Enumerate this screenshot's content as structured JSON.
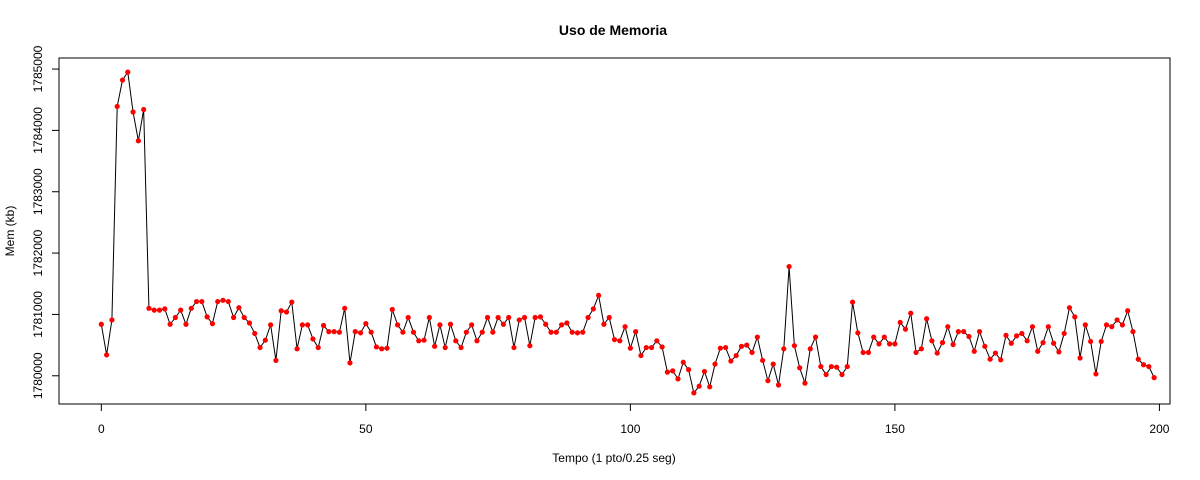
{
  "chart_data": {
    "type": "line",
    "title": "Uso de Memoria",
    "xlabel": "Tempo (1 pto/0.25 seg)",
    "ylabel": "Mem (kb)",
    "xlim": [
      -8,
      202
    ],
    "ylim": [
      1779540,
      1785180
    ],
    "x_ticks": [
      0,
      50,
      100,
      150,
      200
    ],
    "y_ticks": [
      1780000,
      1781000,
      1782000,
      1783000,
      1784000,
      1785000
    ],
    "grid": false,
    "line_color": "#000000",
    "point_color": "#ff0000",
    "series": [
      {
        "x_start": 0,
        "x_step": 1,
        "values": [
          1780840,
          1780340,
          1780910,
          1784390,
          1784820,
          1784950,
          1784300,
          1783830,
          1784340,
          1781100,
          1781070,
          1781070,
          1781090,
          1780840,
          1780950,
          1781070,
          1780840,
          1781100,
          1781210,
          1781210,
          1780960,
          1780850,
          1781210,
          1781230,
          1781210,
          1780950,
          1781110,
          1780950,
          1780860,
          1780690,
          1780460,
          1780580,
          1780830,
          1780250,
          1781060,
          1781040,
          1781200,
          1780440,
          1780830,
          1780830,
          1780600,
          1780460,
          1780820,
          1780720,
          1780720,
          1780710,
          1781100,
          1780210,
          1780720,
          1780700,
          1780850,
          1780710,
          1780470,
          1780440,
          1780450,
          1781080,
          1780830,
          1780710,
          1780950,
          1780710,
          1780570,
          1780580,
          1780950,
          1780480,
          1780830,
          1780460,
          1780840,
          1780570,
          1780460,
          1780710,
          1780830,
          1780570,
          1780710,
          1780950,
          1780710,
          1780950,
          1780840,
          1780950,
          1780460,
          1780910,
          1780950,
          1780490,
          1780950,
          1780960,
          1780840,
          1780710,
          1780710,
          1780830,
          1780860,
          1780710,
          1780700,
          1780710,
          1780950,
          1781090,
          1781310,
          1780840,
          1780950,
          1780590,
          1780570,
          1780800,
          1780450,
          1780720,
          1780330,
          1780460,
          1780460,
          1780570,
          1780470,
          1780060,
          1780080,
          1779950,
          1780220,
          1780100,
          1779720,
          1779830,
          1780070,
          1779820,
          1780190,
          1780450,
          1780460,
          1780240,
          1780330,
          1780480,
          1780500,
          1780380,
          1780630,
          1780250,
          1779920,
          1780190,
          1779850,
          1780440,
          1781780,
          1780490,
          1780130,
          1779880,
          1780440,
          1780630,
          1780150,
          1780020,
          1780150,
          1780140,
          1780020,
          1780150,
          1781200,
          1780700,
          1780380,
          1780380,
          1780630,
          1780520,
          1780630,
          1780520,
          1780520,
          1780870,
          1780760,
          1781020,
          1780380,
          1780440,
          1780930,
          1780570,
          1780370,
          1780540,
          1780800,
          1780510,
          1780720,
          1780720,
          1780640,
          1780400,
          1780720,
          1780480,
          1780270,
          1780370,
          1780260,
          1780660,
          1780530,
          1780650,
          1780690,
          1780570,
          1780800,
          1780400,
          1780540,
          1780800,
          1780530,
          1780390,
          1780690,
          1781110,
          1780960,
          1780290,
          1780830,
          1780560,
          1780030,
          1780560,
          1780830,
          1780800,
          1780910,
          1780830,
          1781060,
          1780720,
          1780270,
          1780180,
          1780150,
          1779970
        ]
      }
    ]
  }
}
